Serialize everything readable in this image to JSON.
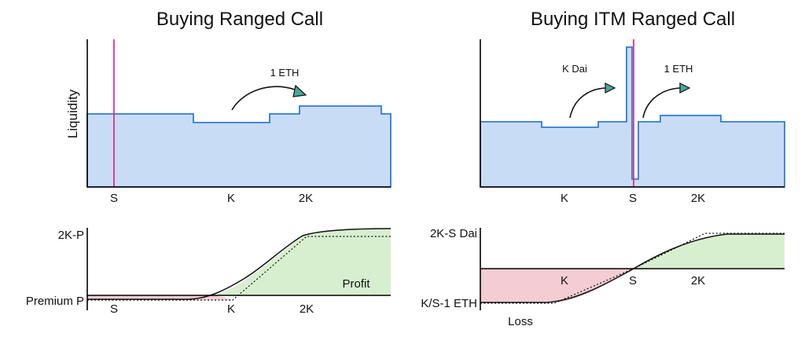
{
  "left": {
    "title": "Buying Ranged Call",
    "y_axis_label": "Liquidity",
    "top_ticks": [
      "S",
      "K",
      "2K"
    ],
    "arrow_label": "1 ETH",
    "bottom_y_labels": [
      "2K-P",
      "Premium P"
    ],
    "bottom_ticks": [
      "S",
      "K",
      "2K"
    ],
    "profit_label": "Profit"
  },
  "right": {
    "title": "Buying ITM Ranged Call",
    "top_ticks": [
      "K",
      "S",
      "2K"
    ],
    "arrow_label_1": "K Dai",
    "arrow_label_2": "1 ETH",
    "bottom_y_labels": [
      "2K-S Dai",
      "K/S-1 ETH"
    ],
    "bottom_ticks": [
      "K",
      "S",
      "2K"
    ],
    "loss_label": "Loss"
  },
  "colors": {
    "liquidity_fill": "#c9dcf6",
    "liquidity_line": "#2f7bd6",
    "spot_line": "#e0197d",
    "loss_fill": "#f3cdd3",
    "profit_fill": "#d7efcf",
    "arrow_head": "#4aa79b"
  }
}
